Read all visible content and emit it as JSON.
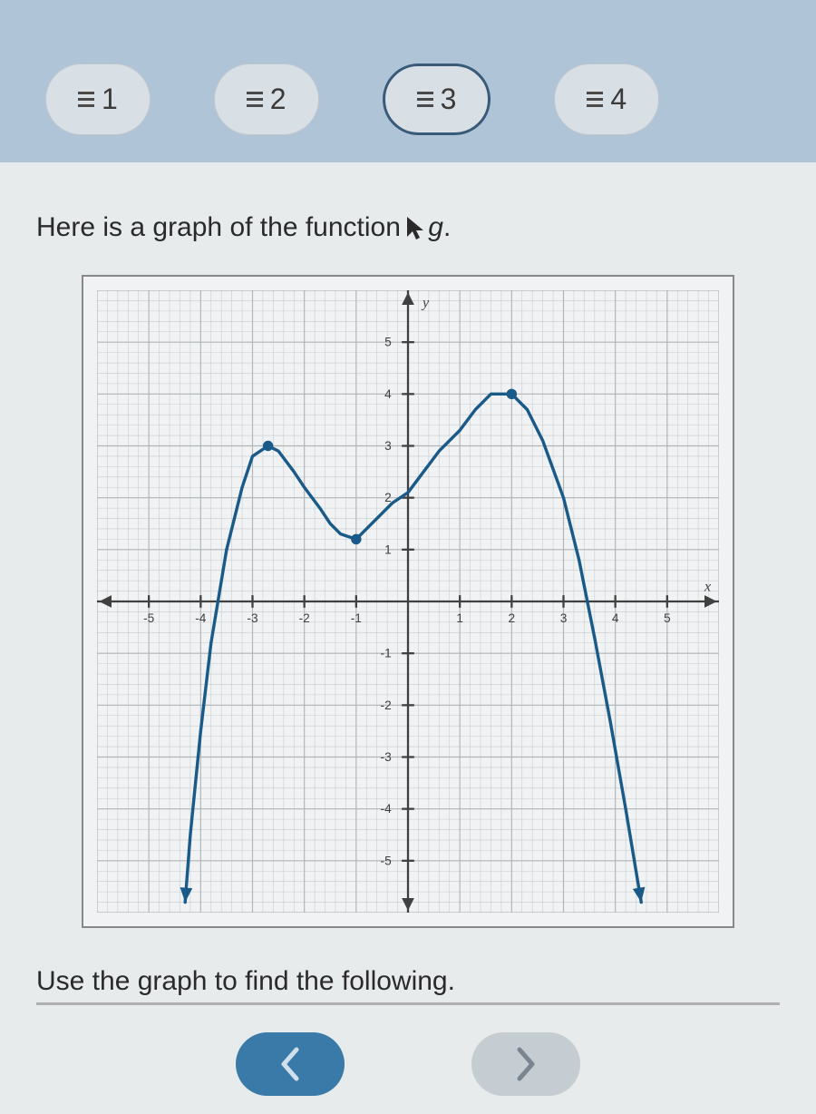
{
  "tabs": {
    "items": [
      {
        "label": "1",
        "active": false
      },
      {
        "label": "2",
        "active": false
      },
      {
        "label": "3",
        "active": true
      },
      {
        "label": "4",
        "active": false
      }
    ],
    "icon_name": "hamburger-icon",
    "background_color": "#b0c4d8",
    "tab_bg": "#d9e0e5",
    "active_border": "#3a5a7a",
    "fontsize": 32
  },
  "prompt": {
    "text_before": "Here is a graph of the function ",
    "function_name": "g",
    "text_after": ".",
    "fontsize": 30,
    "color": "#2a2a2a"
  },
  "chart": {
    "type": "line",
    "xlim": [
      -6,
      6
    ],
    "ylim": [
      -6,
      6
    ],
    "xtick_step": 1,
    "ytick_step": 1,
    "x_labels": [
      -5,
      -4,
      -3,
      -2,
      -1,
      1,
      2,
      3,
      4,
      5
    ],
    "y_labels": [
      -5,
      -4,
      -3,
      -2,
      -1,
      1,
      2,
      3,
      4,
      5
    ],
    "x_axis_label": "x",
    "y_axis_label": "y",
    "grid_minor_color": "#c8cccf",
    "grid_major_color": "#b0b5b8",
    "axis_color": "#404040",
    "background_color": "#f0f2f3",
    "tick_font_size": 12,
    "curve": {
      "color": "#1a5a88",
      "width": 3,
      "points": [
        [
          -4.3,
          -5.8
        ],
        [
          -4.2,
          -4.5
        ],
        [
          -4.0,
          -2.5
        ],
        [
          -3.8,
          -0.8
        ],
        [
          -3.5,
          1.0
        ],
        [
          -3.2,
          2.2
        ],
        [
          -3.0,
          2.8
        ],
        [
          -2.7,
          3.0
        ],
        [
          -2.5,
          2.9
        ],
        [
          -2.2,
          2.5
        ],
        [
          -2.0,
          2.2
        ],
        [
          -1.7,
          1.8
        ],
        [
          -1.5,
          1.5
        ],
        [
          -1.3,
          1.3
        ],
        [
          -1.0,
          1.2
        ],
        [
          -0.8,
          1.4
        ],
        [
          -0.5,
          1.7
        ],
        [
          -0.3,
          1.9
        ],
        [
          0.0,
          2.1
        ],
        [
          0.3,
          2.5
        ],
        [
          0.6,
          2.9
        ],
        [
          1.0,
          3.3
        ],
        [
          1.3,
          3.7
        ],
        [
          1.6,
          4.0
        ],
        [
          2.0,
          4.0
        ],
        [
          2.3,
          3.7
        ],
        [
          2.6,
          3.1
        ],
        [
          3.0,
          2.0
        ],
        [
          3.3,
          0.8
        ],
        [
          3.6,
          -0.7
        ],
        [
          3.9,
          -2.3
        ],
        [
          4.2,
          -4.0
        ],
        [
          4.5,
          -5.8
        ]
      ]
    },
    "markers": [
      {
        "x": -2.7,
        "y": 3.0,
        "r": 5,
        "fill": "#1a5a88"
      },
      {
        "x": -1.0,
        "y": 1.2,
        "r": 5,
        "fill": "#1a5a88"
      },
      {
        "x": 2.0,
        "y": 4.0,
        "r": 5,
        "fill": "#1a5a88"
      }
    ],
    "arrows_on_curve_ends": true,
    "arrows_on_axes": true
  },
  "bottom_prompt": {
    "text": "Use the graph to find the following.",
    "fontsize": 30,
    "color": "#2a2a2a"
  },
  "nav": {
    "prev_bg": "#3a7aa8",
    "prev_arrow_color": "#cfe0ec",
    "next_bg": "#c5cdd2",
    "next_arrow_color": "#7a8590"
  }
}
